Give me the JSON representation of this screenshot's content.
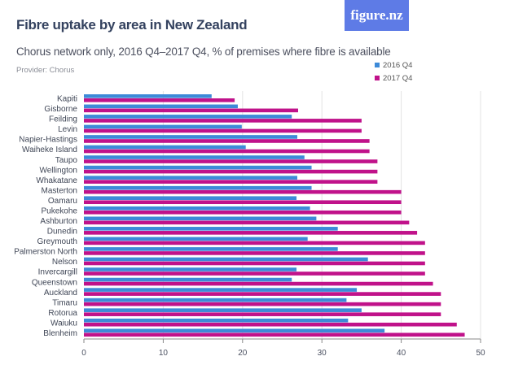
{
  "header": {
    "title": "Fibre uptake by area in New Zealand",
    "subtitle": "Chorus network only, 2016 Q4–2017 Q4, % of premises where fibre is available",
    "provider": "Provider: Chorus",
    "logo": "figure.nz"
  },
  "chart_data": {
    "type": "bar",
    "orientation": "horizontal",
    "title": "Fibre uptake by area in New Zealand",
    "xlabel": "",
    "ylabel": "",
    "xlim": [
      0,
      50
    ],
    "xticks": [
      0,
      10,
      20,
      30,
      40,
      50
    ],
    "grid": true,
    "legend_position": "top-right",
    "categories": [
      "Kapiti",
      "Gisborne",
      "Feilding",
      "Levin",
      "Napier-Hastings",
      "Waiheke Island",
      "Taupo",
      "Wellington",
      "Whakatane",
      "Masterton",
      "Oamaru",
      "Pukekohe",
      "Ashburton",
      "Dunedin",
      "Greymouth",
      "Palmerston North",
      "Nelson",
      "Invercargill",
      "Queenstown",
      "Auckland",
      "Timaru",
      "Rotorua",
      "Waiuku",
      "Blenheim"
    ],
    "series": [
      {
        "name": "2016 Q4",
        "color": "#3d8ad8",
        "values": [
          16.1,
          19.4,
          26.2,
          19.9,
          26.9,
          20.4,
          27.8,
          28.7,
          26.9,
          28.7,
          26.8,
          28.5,
          29.3,
          32.0,
          28.2,
          32.0,
          35.8,
          26.8,
          26.2,
          34.4,
          33.1,
          35.0,
          33.3,
          37.9
        ]
      },
      {
        "name": "2017 Q4",
        "color": "#c0128a",
        "values": [
          19,
          27,
          35,
          35,
          36,
          36,
          37,
          37,
          37,
          40,
          40,
          40,
          41,
          42,
          43,
          43,
          43,
          43,
          44,
          45,
          45,
          45,
          47,
          48
        ]
      }
    ]
  }
}
